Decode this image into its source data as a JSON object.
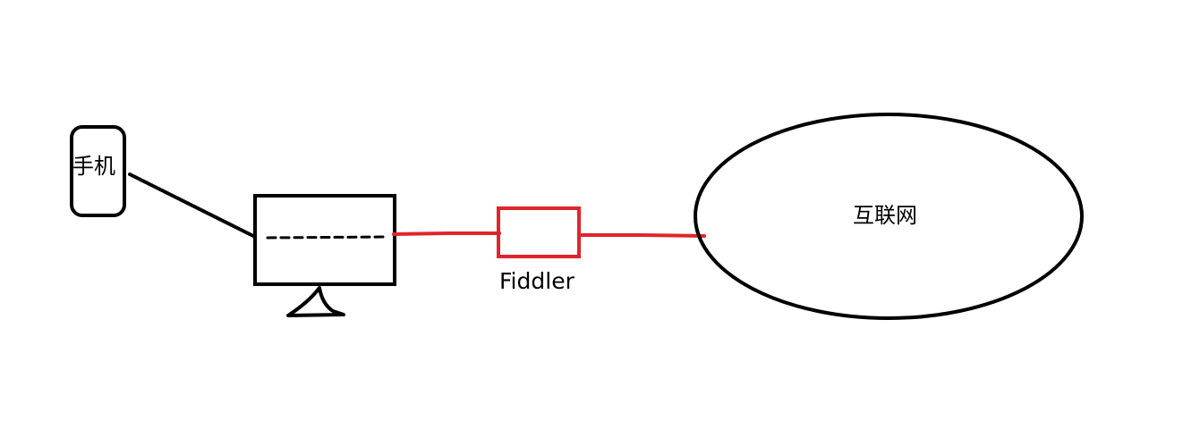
{
  "labels": {
    "phone": "手机",
    "fiddler": "Fiddler",
    "internet": "互联网"
  },
  "colors": {
    "stroke": "#000000",
    "proxy_path": "#e0242c",
    "background": "#ffffff"
  }
}
